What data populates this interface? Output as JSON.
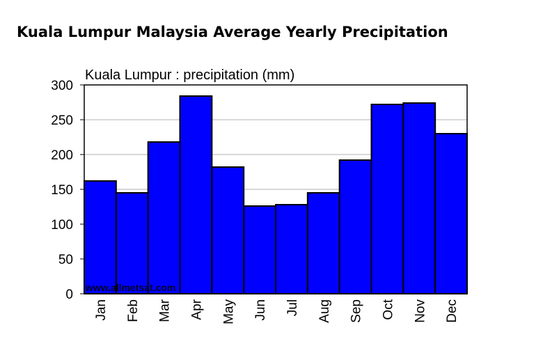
{
  "page": {
    "title": "Kuala Lumpur Malaysia Average Yearly Precipitation"
  },
  "colors": {
    "bar_fill": "#0000ff",
    "bar_stroke": "#000000",
    "gridline": "#c0c0c0",
    "watermark": "#e8e8ff"
  },
  "chart_data": {
    "type": "bar",
    "title": "Kuala Lumpur : precipitation (mm)",
    "xlabel": "",
    "ylabel": "",
    "categories": [
      "Jan",
      "Feb",
      "Mar",
      "Apr",
      "May",
      "Jun",
      "Jul",
      "Aug",
      "Sep",
      "Oct",
      "Nov",
      "Dec"
    ],
    "values": [
      162,
      145,
      218,
      284,
      182,
      126,
      128,
      145,
      192,
      272,
      274,
      230
    ],
    "ylim": [
      0,
      300
    ],
    "yticks": [
      "0",
      "50",
      "100",
      "150",
      "200",
      "250",
      "300"
    ],
    "grid": true,
    "watermark": "www.allmetsat.com"
  }
}
